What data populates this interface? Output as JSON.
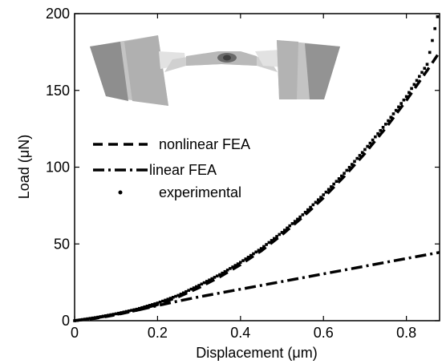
{
  "chart_data": {
    "type": "line",
    "xlabel": "Displacement (μm)",
    "ylabel": "Load (μN)",
    "xlim": [
      0,
      0.88
    ],
    "ylim": [
      0,
      200
    ],
    "xticks": [
      0,
      0.2,
      0.4,
      0.6,
      0.8
    ],
    "xtick_labels": [
      "0",
      "0.2",
      "0.4",
      "0.6",
      "0.8"
    ],
    "yticks": [
      0,
      50,
      100,
      150,
      200
    ],
    "ytick_labels": [
      "0",
      "50",
      "100",
      "150",
      "200"
    ],
    "grid": false,
    "legend_position": "center-left",
    "series": [
      {
        "name": "nonlinear FEA",
        "style": "dashed",
        "color": "#000000",
        "x": [
          0,
          0.05,
          0.1,
          0.15,
          0.2,
          0.25,
          0.3,
          0.35,
          0.4,
          0.45,
          0.5,
          0.55,
          0.6,
          0.65,
          0.7,
          0.75,
          0.8,
          0.85,
          0.88
        ],
        "y": [
          0,
          1.5,
          3.8,
          6.8,
          10.5,
          15.5,
          21.5,
          28.5,
          36.5,
          45.5,
          56,
          67.5,
          80,
          94,
          109,
          125.5,
          143.5,
          163,
          175
        ]
      },
      {
        "name": "linear FEA",
        "style": "dashdot",
        "color": "#000000",
        "x": [
          0,
          0.05,
          0.1,
          0.15,
          0.2,
          0.25,
          0.3,
          0.4,
          0.5,
          0.6,
          0.7,
          0.8,
          0.88
        ],
        "y": [
          0,
          1.8,
          4.0,
          6.8,
          9.8,
          12.8,
          15.5,
          20.5,
          25.5,
          30.5,
          35.5,
          40.5,
          44.5
        ]
      },
      {
        "name": "experimental",
        "style": "points",
        "color": "#000000",
        "x": [
          0,
          0.05,
          0.1,
          0.15,
          0.2,
          0.25,
          0.3,
          0.35,
          0.4,
          0.45,
          0.5,
          0.55,
          0.6,
          0.65,
          0.7,
          0.75,
          0.8,
          0.85,
          0.875
        ],
        "y": [
          0,
          2,
          4.5,
          7.5,
          11.5,
          16.5,
          23,
          30,
          38,
          47,
          57.5,
          69,
          82,
          96,
          111.5,
          128,
          146,
          167,
          198
        ]
      }
    ],
    "inset_image": "beam-deformation-inset"
  }
}
